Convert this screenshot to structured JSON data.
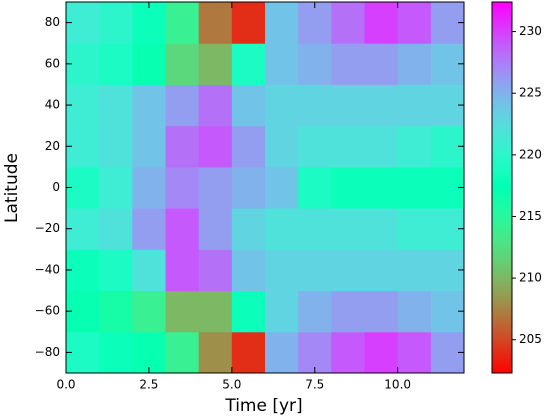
{
  "chart_data": {
    "type": "heatmap",
    "xlabel": "Time [yr]",
    "ylabel": "Latitude",
    "x": [
      0,
      1,
      2,
      3,
      4,
      5,
      6,
      7,
      8,
      9,
      10,
      11,
      12
    ],
    "y": [
      -90,
      -70,
      -50,
      -30,
      -10,
      10,
      30,
      50,
      70,
      90
    ],
    "values": [
      [
        219,
        218,
        217,
        214,
        208,
        204,
        225,
        227,
        229,
        230,
        229,
        226
      ],
      [
        217,
        216,
        214,
        210,
        210,
        218,
        223,
        225,
        226,
        226,
        225,
        224
      ],
      [
        218,
        219,
        222,
        229,
        228,
        224,
        223,
        223,
        223,
        223,
        223,
        223
      ],
      [
        221,
        222,
        226,
        229,
        226,
        223,
        222,
        222,
        222,
        222,
        221,
        221
      ],
      [
        219,
        221,
        225,
        227,
        226,
        225,
        224,
        219,
        218,
        218,
        218,
        218
      ],
      [
        221,
        222,
        224,
        228,
        229,
        226,
        223,
        222,
        222,
        222,
        221,
        220
      ],
      [
        221,
        222,
        224,
        226,
        228,
        224,
        223,
        223,
        223,
        223,
        223,
        223
      ],
      [
        220,
        219,
        217,
        212,
        210,
        219,
        224,
        225,
        226,
        226,
        225,
        224
      ],
      [
        221,
        220,
        218,
        214,
        207,
        204,
        224,
        226,
        228,
        230,
        229,
        226
      ]
    ],
    "colormap": "rainbow_r",
    "clim": [
      202.3,
      232.4
    ],
    "cticks": [
      205,
      210,
      215,
      220,
      225,
      230
    ],
    "xlim": [
      0,
      12
    ],
    "xticks": [
      {
        "value": 0,
        "label": "0.0"
      },
      {
        "value": 2.5,
        "label": "2.5"
      },
      {
        "value": 5,
        "label": "5.0"
      },
      {
        "value": 7.5,
        "label": "7.5"
      },
      {
        "value": 10,
        "label": "10.0"
      }
    ],
    "ylim": [
      -90,
      90
    ],
    "yticks": [
      {
        "value": -80,
        "label": "−80"
      },
      {
        "value": -60,
        "label": "−60"
      },
      {
        "value": -40,
        "label": "−40"
      },
      {
        "value": -20,
        "label": "−20"
      },
      0,
      20,
      40,
      60,
      80
    ]
  }
}
